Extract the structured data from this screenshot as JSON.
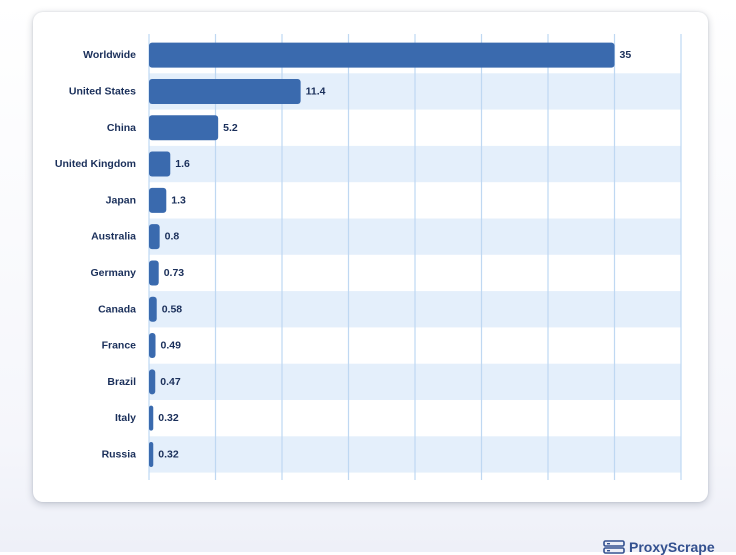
{
  "chart_data": {
    "type": "bar",
    "orientation": "horizontal",
    "categories": [
      "Worldwide",
      "United States",
      "China",
      "United Kingdom",
      "Japan",
      "Australia",
      "Germany",
      "Canada",
      "France",
      "Brazil",
      "Italy",
      "Russia"
    ],
    "values": [
      35,
      11.4,
      5.2,
      1.6,
      1.3,
      0.8,
      0.73,
      0.58,
      0.49,
      0.47,
      0.32,
      0.32
    ],
    "value_labels": [
      "35",
      "11.4",
      "5.2",
      "1.6",
      "1.3",
      "0.8",
      "0.73",
      "0.58",
      "0.49",
      "0.47",
      "0.32",
      "0.32"
    ],
    "xlim": [
      0,
      40
    ],
    "grid": true,
    "bar_color": "#3a6aae",
    "stripe_color": "#e4effb",
    "grid_color": "#bfd8f2",
    "label_color": "#1a2f5a"
  },
  "brand": {
    "name": "ProxyScrape",
    "color": "#33508f",
    "icon": "server-stack-icon"
  }
}
